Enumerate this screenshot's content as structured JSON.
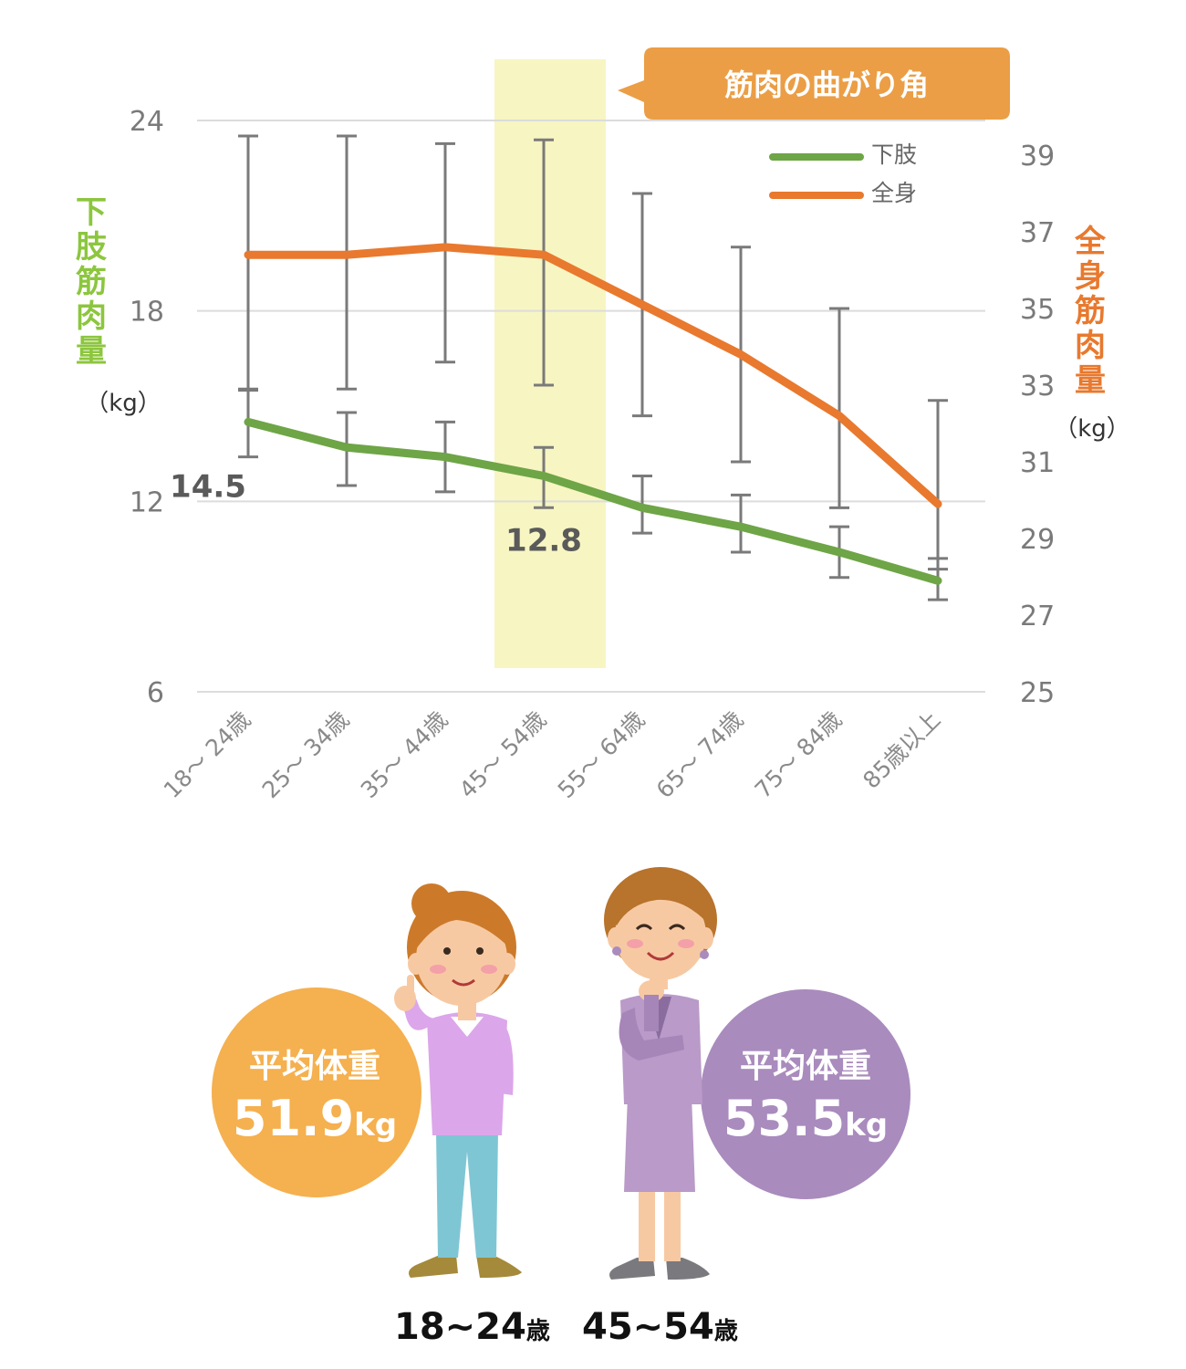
{
  "chart_data": {
    "type": "line",
    "categories": [
      "18～ 24歳",
      "25～ 34歳",
      "35～ 44歳",
      "45～ 54歳",
      "55～ 64歳",
      "65～ 74歳",
      "75～ 84歳",
      "85歳以上"
    ],
    "y_left": {
      "label": "下肢筋肉量",
      "unit": "（kg）",
      "ticks": [
        24,
        18,
        12,
        6
      ],
      "range": [
        6,
        24
      ],
      "color": "#8cc63e"
    },
    "y_right": {
      "label": "全身筋肉量",
      "unit": "（kg）",
      "ticks": [
        39,
        37,
        35,
        33,
        31,
        29,
        27,
        25
      ],
      "range": [
        25,
        40
      ],
      "color": "#e8792e"
    },
    "series": [
      {
        "name": "下肢",
        "axis": "left",
        "color": "#6ea546",
        "values": [
          14.5,
          13.7,
          13.4,
          12.8,
          11.8,
          11.2,
          10.4,
          9.5
        ],
        "error_low": [
          13.4,
          12.5,
          12.3,
          11.8,
          11.0,
          10.4,
          9.6,
          8.9
        ],
        "error_high": [
          15.5,
          14.8,
          14.5,
          13.7,
          12.8,
          12.2,
          11.2,
          10.2
        ]
      },
      {
        "name": "全身",
        "axis": "right",
        "color": "#e8792e",
        "values": [
          36.4,
          36.4,
          36.6,
          36.4,
          35.1,
          33.8,
          32.2,
          29.9
        ],
        "error_low": [
          32.9,
          32.9,
          33.6,
          33.0,
          32.2,
          31.0,
          29.8,
          28.2
        ],
        "error_high": [
          39.5,
          39.5,
          39.3,
          39.4,
          38.0,
          36.6,
          35.0,
          32.6
        ]
      }
    ],
    "data_labels": [
      {
        "series": "下肢",
        "category": "18～ 24歳",
        "text": "14.5"
      },
      {
        "series": "下肢",
        "category": "45～ 54歳",
        "text": "12.8"
      }
    ],
    "highlight": {
      "category": "45～ 54歳",
      "label": "筋肉の曲がり角",
      "color": "#f7f5c2"
    },
    "legend": {
      "placement": "top-right",
      "entries": [
        "下肢",
        "全身"
      ]
    },
    "grid": true
  },
  "callout": {
    "text": "筋肉の曲がり角",
    "color": "#eb9e45"
  },
  "figures": [
    {
      "age_main": "18~24",
      "age_unit": "歳",
      "weight_title": "平均体重",
      "weight_value": "51.9",
      "weight_unit": "kg",
      "circle_color": "#f5b04f"
    },
    {
      "age_main": "45~54",
      "age_unit": "歳",
      "weight_title": "平均体重",
      "weight_value": "53.5",
      "weight_unit": "kg",
      "circle_color": "#a98bbd"
    }
  ]
}
